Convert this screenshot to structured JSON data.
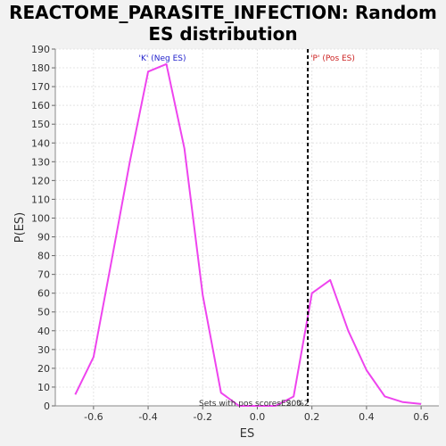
{
  "chart_data": {
    "type": "line",
    "title_line1": "REACTOME_PARASITE_INFECTION: Random",
    "title_line2": "ES distribution",
    "xlabel": "ES",
    "ylabel": "P(ES)",
    "xlim": [
      -0.74,
      0.665
    ],
    "ylim": [
      0,
      190
    ],
    "x_ticks": [
      -0.6,
      -0.4,
      -0.2,
      0.0,
      0.2,
      0.4,
      0.6
    ],
    "x_tick_labels": [
      "-0.6",
      "-0.4",
      "-0.2",
      "0.0",
      "0.2",
      "0.4",
      "0.6"
    ],
    "y_ticks": [
      0,
      10,
      20,
      30,
      40,
      50,
      60,
      70,
      80,
      90,
      100,
      110,
      120,
      130,
      140,
      150,
      160,
      170,
      180,
      190
    ],
    "grid": true,
    "series": [
      {
        "color": "#ee44ee",
        "x": [
          -0.667,
          -0.6,
          -0.533,
          -0.467,
          -0.4,
          -0.333,
          -0.267,
          -0.2,
          -0.133,
          -0.067,
          0.0,
          0.067,
          0.133,
          0.2,
          0.267,
          0.333,
          0.4,
          0.467,
          0.533,
          0.6
        ],
        "y": [
          6,
          26,
          78,
          130,
          178,
          182,
          137,
          59,
          7,
          0,
          0,
          0,
          5,
          60,
          67,
          40,
          19,
          5,
          2,
          1
        ]
      }
    ],
    "threshold_line": {
      "x": 0.185,
      "color": "#000000",
      "style": "dashed"
    },
    "annotations": {
      "neg_label": "'K' (Neg ES)",
      "neg_color": "#2222cc",
      "pos_label": "'P' (Pos ES)",
      "pos_color": "#cc2222",
      "bottom_text": "Sets with pos scores: 20%",
      "bottom_text2": "ES: 0.2"
    }
  }
}
